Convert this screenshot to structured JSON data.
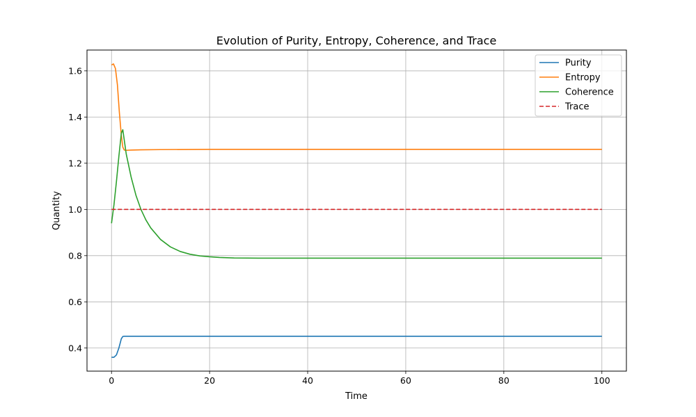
{
  "chart_data": {
    "type": "line",
    "title": "Evolution of Purity, Entropy, Coherence, and Trace",
    "xlabel": "Time",
    "ylabel": "Quantity",
    "xlim": [
      -5,
      105
    ],
    "ylim": [
      0.3,
      1.69
    ],
    "xticks": [
      0,
      20,
      40,
      60,
      80,
      100
    ],
    "yticks": [
      0.4,
      0.6,
      0.8,
      1.0,
      1.2,
      1.4,
      1.6
    ],
    "xtick_labels": [
      "0",
      "20",
      "40",
      "60",
      "80",
      "100"
    ],
    "ytick_labels": [
      "0.4",
      "0.6",
      "0.8",
      "1.0",
      "1.2",
      "1.4",
      "1.6"
    ],
    "grid": true,
    "legend_position": "top-right",
    "series": [
      {
        "name": "Purity",
        "color": "#1f77b4",
        "dash": "solid",
        "x": [
          0,
          0.5,
          1.0,
          1.5,
          2.0,
          2.3,
          2.6,
          3,
          5,
          10,
          20,
          40,
          60,
          80,
          100
        ],
        "y": [
          0.36,
          0.36,
          0.37,
          0.4,
          0.44,
          0.45,
          0.451,
          0.451,
          0.451,
          0.451,
          0.451,
          0.451,
          0.451,
          0.451,
          0.451
        ]
      },
      {
        "name": "Entropy",
        "color": "#ff7f0e",
        "dash": "solid",
        "x": [
          0,
          0.4,
          0.8,
          1.2,
          1.6,
          2.0,
          2.3,
          2.6,
          3.0,
          4,
          6,
          10,
          20,
          40,
          60,
          80,
          100
        ],
        "y": [
          1.625,
          1.63,
          1.61,
          1.54,
          1.42,
          1.32,
          1.27,
          1.257,
          1.256,
          1.257,
          1.258,
          1.259,
          1.26,
          1.26,
          1.26,
          1.26,
          1.26
        ]
      },
      {
        "name": "Coherence",
        "color": "#2ca02c",
        "dash": "solid",
        "x": [
          0,
          0.5,
          1.0,
          1.5,
          2.0,
          2.3,
          3,
          4,
          5,
          6,
          7,
          8,
          10,
          12,
          14,
          16,
          18,
          20,
          22,
          25,
          30,
          40,
          60,
          80,
          100
        ],
        "y": [
          0.94,
          1.02,
          1.12,
          1.23,
          1.33,
          1.345,
          1.24,
          1.14,
          1.06,
          1.0,
          0.955,
          0.92,
          0.87,
          0.838,
          0.818,
          0.806,
          0.799,
          0.795,
          0.792,
          0.79,
          0.789,
          0.789,
          0.789,
          0.789,
          0.789
        ]
      },
      {
        "name": "Trace",
        "color": "#d62728",
        "dash": "dashed",
        "x": [
          0,
          100
        ],
        "y": [
          1.0,
          1.0
        ]
      }
    ]
  }
}
